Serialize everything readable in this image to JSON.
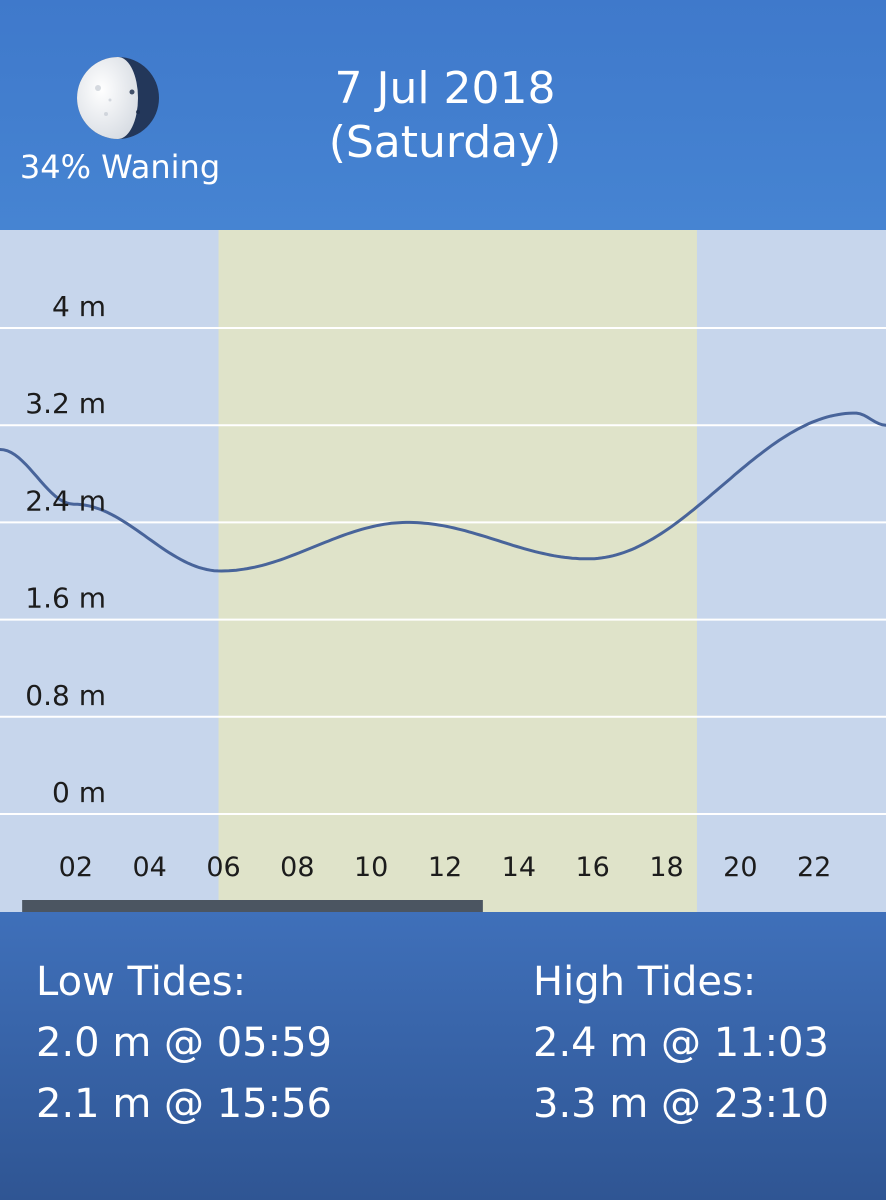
{
  "moon": {
    "icon": "moon-phase-waning-icon",
    "label": "34% Waning"
  },
  "date": {
    "line1": "7 Jul 2018",
    "line2": "(Saturday)"
  },
  "chart_data": {
    "type": "line",
    "title": "",
    "xlabel": "",
    "ylabel": "",
    "x_ticks": [
      "02",
      "04",
      "06",
      "08",
      "10",
      "12",
      "14",
      "16",
      "18",
      "20",
      "22"
    ],
    "x_tick_values": [
      2,
      4,
      6,
      8,
      10,
      12,
      14,
      16,
      18,
      20,
      22
    ],
    "y_ticks": [
      "0 m",
      "0.8 m",
      "1.6 m",
      "2.4 m",
      "3.2 m",
      "4 m"
    ],
    "y_tick_values": [
      0,
      0.8,
      1.6,
      2.4,
      3.2,
      4.0
    ],
    "xlim": [
      0,
      24
    ],
    "ylim": [
      0,
      4.0
    ],
    "grid": true,
    "daylight_hours": [
      5.92,
      18.88
    ],
    "colors": {
      "night": "#c7d6ec",
      "day": "#dfe3c9",
      "line": "#48649a",
      "grid": "#ffffff",
      "scrollbar": "#4b5561"
    },
    "scroll_indicator_fraction": [
      0.025,
      0.545
    ],
    "series": [
      {
        "x": [
          0,
          2.0,
          5.98,
          11.05,
          15.93,
          23.17,
          24
        ],
        "values": [
          3.0,
          2.55,
          2.0,
          2.4,
          2.1,
          3.3,
          3.2
        ]
      }
    ]
  },
  "tides": {
    "low_title": "Low Tides:",
    "low": [
      "2.0 m @ 05:59",
      "2.1 m @ 15:56"
    ],
    "high_title": "High Tides:",
    "high": [
      "2.4 m @ 11:03",
      "3.3 m @ 23:10"
    ]
  }
}
